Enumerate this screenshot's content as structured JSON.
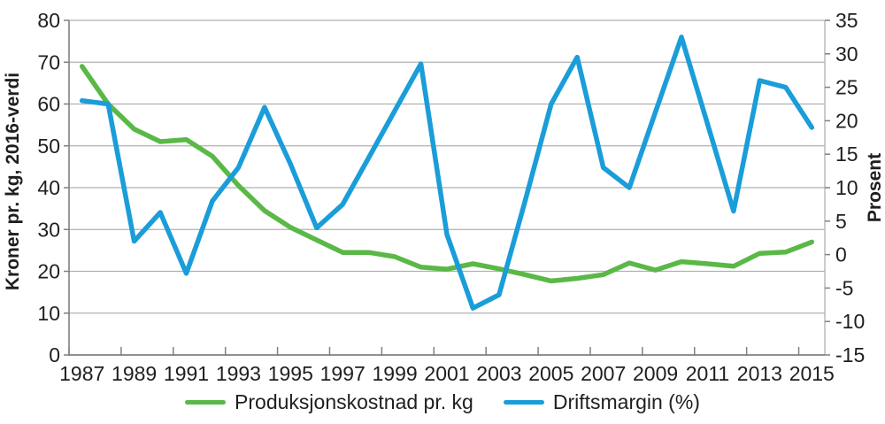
{
  "chart_data": {
    "type": "line",
    "title": "",
    "categories": [
      1987,
      1988,
      1989,
      1990,
      1991,
      1992,
      1993,
      1994,
      1995,
      1996,
      1997,
      1998,
      1999,
      2000,
      2001,
      2002,
      2003,
      2004,
      2005,
      2006,
      2007,
      2008,
      2009,
      2010,
      2011,
      2012,
      2013,
      2014,
      2015
    ],
    "series": [
      {
        "name": "Produksjonskostnad pr. kg",
        "axis": "left",
        "color": "#5ab847",
        "values": [
          69,
          60,
          54,
          51,
          51.5,
          47.5,
          40.5,
          34.5,
          30.5,
          27.5,
          24.5,
          24.5,
          23.5,
          21,
          20.5,
          21.8,
          20.6,
          19.2,
          17.7,
          18.3,
          19.2,
          22,
          20.3,
          22.3,
          21.8,
          21.2,
          24.3,
          24.6,
          27
        ]
      },
      {
        "name": "Driftsmargin (%)",
        "axis": "right",
        "color": "#1a9dd9",
        "values": [
          23,
          22.5,
          2,
          6.3,
          -2.8,
          8,
          13,
          22,
          13.5,
          4,
          7.5,
          14.5,
          21.5,
          28.5,
          3,
          -8,
          -6,
          8,
          22.5,
          29.5,
          13,
          10,
          21.3,
          32.5,
          19.5,
          6.5,
          26,
          25,
          19
        ]
      }
    ],
    "left_axis": {
      "label": "Kroner pr. kg, 2016-verdi",
      "min": 0,
      "max": 80,
      "step": 10,
      "tick_labels": [
        "0",
        "10",
        "20",
        "30",
        "40",
        "50",
        "60",
        "70",
        "80"
      ]
    },
    "right_axis": {
      "label": "Prosent",
      "min": -15,
      "max": 35,
      "step": 5,
      "tick_labels": [
        "-15",
        "-10",
        "-5",
        "0",
        "5",
        "10",
        "15",
        "20",
        "25",
        "30",
        "35"
      ]
    },
    "x_axis": {
      "tick_labels": [
        "1987",
        "1989",
        "1991",
        "1993",
        "1995",
        "1997",
        "1999",
        "2001",
        "2003",
        "2005",
        "2007",
        "2009",
        "2011",
        "2013",
        "2015"
      ]
    },
    "legend": {
      "position": "bottom"
    },
    "grid": "horizontal",
    "style_colors": {
      "gridline": "#b0b0b0",
      "axis_line": "#808080",
      "text": "#1f1f1f"
    }
  }
}
